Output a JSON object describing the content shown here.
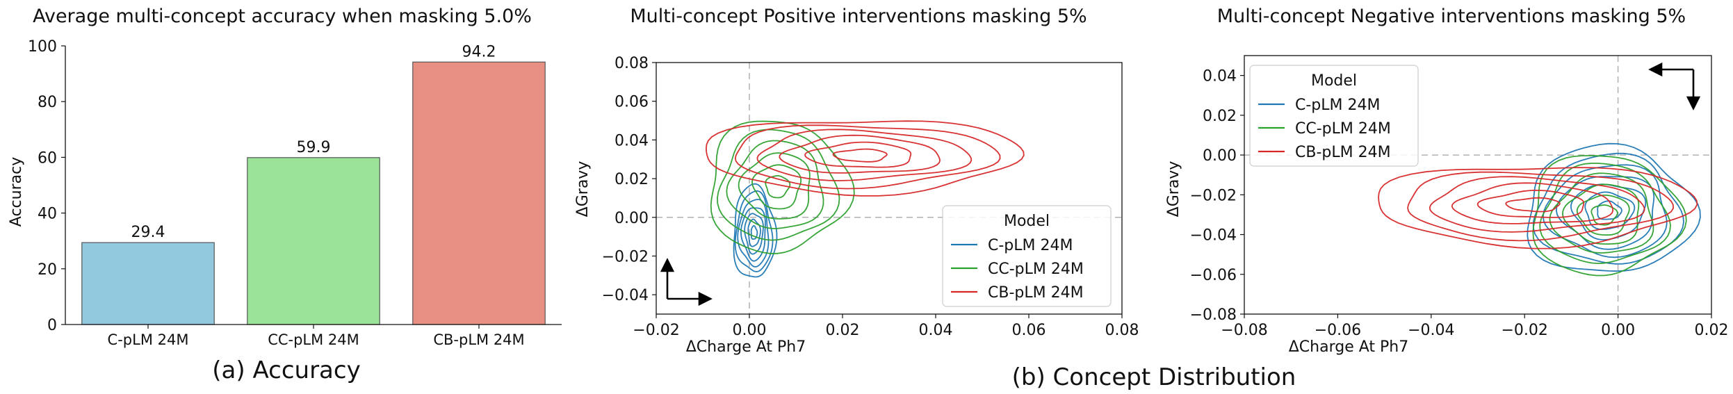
{
  "captions": {
    "a": "(a) Accuracy",
    "b": "(b) Concept Distribution"
  },
  "colors": {
    "C-pLM 24M": "#1f77b4",
    "CC-pLM 24M": "#2ca02c",
    "CB-pLM 24M": "#d62728",
    "bar_C": "#92c9de",
    "bar_CC": "#9ce39a",
    "bar_CB": "#e88f83"
  },
  "chart_data": [
    {
      "type": "bar",
      "title": "Average multi-concept accuracy when masking 5.0%",
      "xlabel": "",
      "ylabel": "Accuracy",
      "ylim": [
        0,
        100
      ],
      "yticks": [
        "0",
        "20",
        "40",
        "60",
        "80",
        "100"
      ],
      "categories": [
        "C-pLM 24M",
        "CC-pLM 24M",
        "CB-pLM 24M"
      ],
      "values": [
        29.4,
        59.9,
        94.2
      ],
      "value_labels": [
        "29.4",
        "59.9",
        "94.2"
      ]
    },
    {
      "type": "contour",
      "title": "Multi-concept Positive interventions masking 5%",
      "xlabel": "ΔCharge At Ph7",
      "ylabel": "ΔGravy",
      "xlim": [
        -0.02,
        0.08
      ],
      "ylim": [
        -0.05,
        0.08
      ],
      "xticks": [
        "−0.02",
        "0.00",
        "0.02",
        "0.04",
        "0.06",
        "0.08"
      ],
      "yticks": [
        "−0.04",
        "−0.02",
        "0.00",
        "0.02",
        "0.04",
        "0.06",
        "0.08"
      ],
      "legend": {
        "title": "Model",
        "position": "lower right",
        "entries": [
          "C-pLM 24M",
          "CC-pLM 24M",
          "CB-pLM 24M"
        ]
      },
      "series": [
        {
          "name": "C-pLM 24M",
          "center": [
            0.001,
            -0.008
          ],
          "spread": [
            0.0045,
            0.024
          ],
          "levels": 7
        },
        {
          "name": "CC-pLM 24M",
          "center": [
            0.006,
            0.016
          ],
          "spread": [
            0.015,
            0.034
          ],
          "levels": 6
        },
        {
          "name": "CB-pLM 24M",
          "center": [
            0.024,
            0.032
          ],
          "spread": [
            0.034,
            0.019
          ],
          "levels": 6
        }
      ],
      "direction_arrow": "up-right"
    },
    {
      "type": "contour",
      "title": "Multi-concept Negative interventions masking 5%",
      "xlabel": "ΔCharge At Ph7",
      "ylabel": "ΔGravy",
      "xlim": [
        -0.08,
        0.02
      ],
      "ylim": [
        -0.08,
        0.05
      ],
      "xticks": [
        "−0.08",
        "−0.06",
        "−0.04",
        "−0.02",
        "0.00",
        "0.02"
      ],
      "yticks": [
        "−0.08",
        "−0.06",
        "−0.04",
        "−0.02",
        "0.00",
        "0.02",
        "0.04"
      ],
      "legend": {
        "title": "Model",
        "position": "upper left",
        "entries": [
          "C-pLM 24M",
          "CC-pLM 24M",
          "CB-pLM 24M"
        ]
      },
      "series": [
        {
          "name": "C-pLM 24M",
          "center": [
            -0.002,
            -0.028
          ],
          "spread": [
            0.018,
            0.032
          ],
          "levels": 7
        },
        {
          "name": "CC-pLM 24M",
          "center": [
            -0.003,
            -0.03
          ],
          "spread": [
            0.016,
            0.03
          ],
          "levels": 6
        },
        {
          "name": "CB-pLM 24M",
          "center": [
            -0.018,
            -0.025
          ],
          "spread": [
            0.034,
            0.02
          ],
          "levels": 6
        }
      ],
      "direction_arrow": "down-left"
    }
  ]
}
